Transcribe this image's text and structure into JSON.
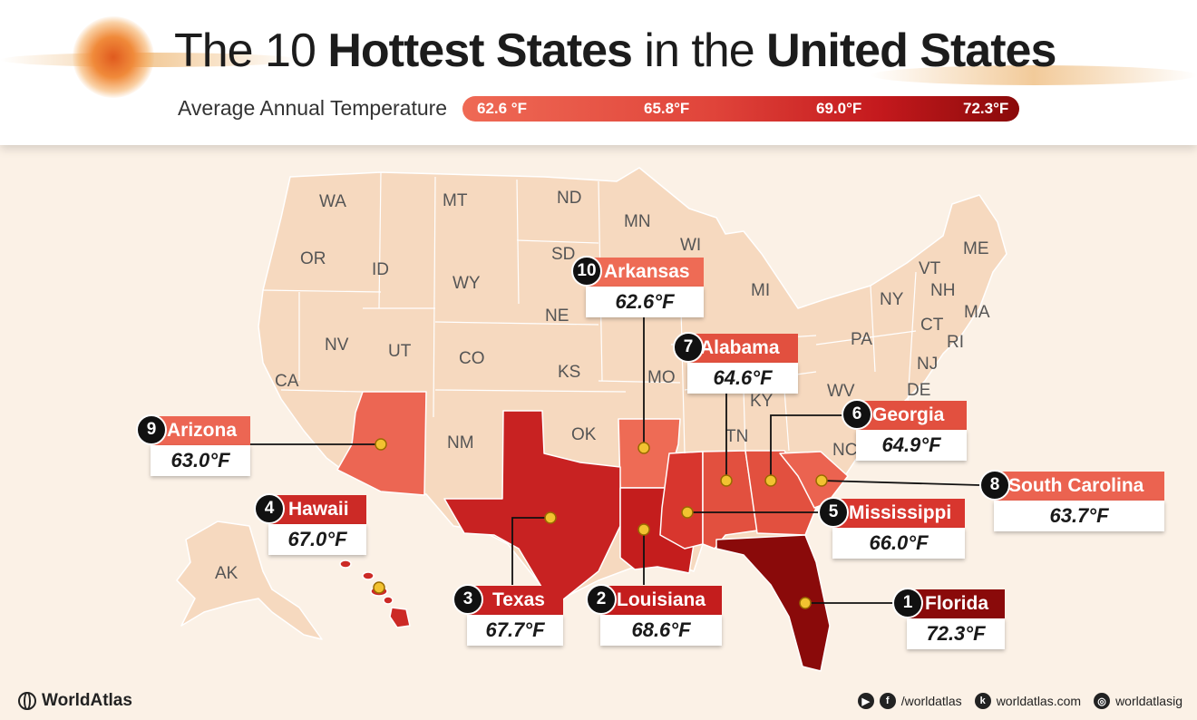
{
  "header": {
    "title_part1": "The 10 ",
    "title_bold1": "Hottest States",
    "title_part2": " in the ",
    "title_bold2": "United States",
    "subtitle": "Average Annual Temperature",
    "scale_labels": [
      "62.6 °F",
      "65.8°F",
      "69.0°F",
      "72.3°F"
    ]
  },
  "state_abbreviations": [
    "WA",
    "MT",
    "ND",
    "MN",
    "OR",
    "ID",
    "WY",
    "SD",
    "WI",
    "MI",
    "NY",
    "VT",
    "NH",
    "ME",
    "MA",
    "CT",
    "RI",
    "PA",
    "NJ",
    "DE",
    "NE",
    "NV",
    "UT",
    "CO",
    "KS",
    "MO",
    "KY",
    "WV",
    "CA",
    "OK",
    "NM",
    "TN",
    "NC",
    "AK"
  ],
  "rankings": [
    {
      "rank": "1",
      "state": "Florida",
      "temp": "72.3°F",
      "color": "#8a0a0a"
    },
    {
      "rank": "2",
      "state": "Louisiana",
      "temp": "68.6°F",
      "color": "#c41d1d"
    },
    {
      "rank": "3",
      "state": "Texas",
      "temp": "67.7°F",
      "color": "#c82222"
    },
    {
      "rank": "4",
      "state": "Hawaii",
      "temp": "67.0°F",
      "color": "#cc2a26"
    },
    {
      "rank": "5",
      "state": "Mississippi",
      "temp": "66.0°F",
      "color": "#d8362e"
    },
    {
      "rank": "6",
      "state": "Georgia",
      "temp": "64.9°F",
      "color": "#e2503f"
    },
    {
      "rank": "7",
      "state": "Alabama",
      "temp": "64.6°F",
      "color": "#e2503f"
    },
    {
      "rank": "8",
      "state": "South Carolina",
      "temp": "63.7°F",
      "color": "#eb6350"
    },
    {
      "rank": "9",
      "state": "Arizona",
      "temp": "63.0°F",
      "color": "#ec6653"
    },
    {
      "rank": "10",
      "state": "Arkansas",
      "temp": "62.6°F",
      "color": "#ee6b55"
    }
  ],
  "colors": {
    "base_state": "#f6d9bf",
    "border": "#ffffff",
    "pin": "#f2c230"
  },
  "footer": {
    "brand": "WorldAtlas",
    "social_handle": "/worldatlas",
    "website": "worldatlas.com",
    "instagram": "worldatlasig"
  }
}
